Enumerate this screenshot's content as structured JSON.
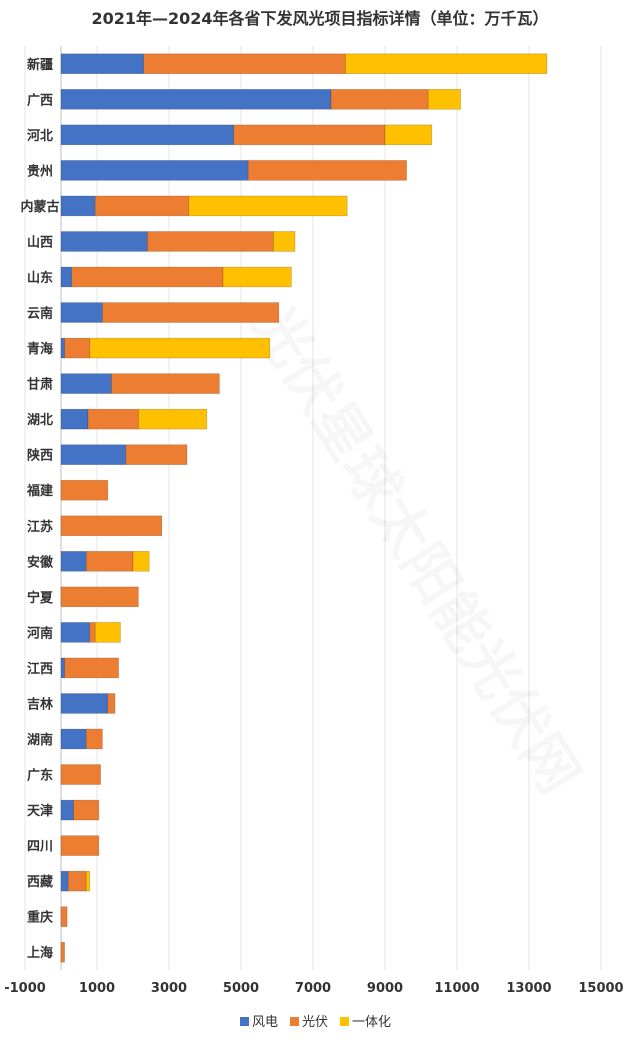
{
  "chart_data": {
    "type": "bar",
    "orientation": "horizontal",
    "stacked": true,
    "title": "2021年—2024年各省下发风光项目指标详情（单位：万千瓦）",
    "categories": [
      "新疆",
      "广西",
      "河北",
      "贵州",
      "内蒙古",
      "山西",
      "山东",
      "云南",
      "青海",
      "甘肃",
      "湖北",
      "陕西",
      "福建",
      "江苏",
      "安徽",
      "宁夏",
      "河南",
      "江西",
      "吉林",
      "湖南",
      "广东",
      "天津",
      "四川",
      "西藏",
      "重庆",
      "上海"
    ],
    "series": [
      {
        "name": "风电",
        "color": "#4472c4",
        "values": [
          2300,
          7500,
          4800,
          5200,
          950,
          2400,
          300,
          1150,
          100,
          1400,
          750,
          1800,
          0,
          0,
          700,
          0,
          800,
          100,
          1300,
          700,
          0,
          350,
          0,
          200,
          0,
          0
        ]
      },
      {
        "name": "光伏",
        "color": "#ed7d31",
        "values": [
          5600,
          2700,
          4200,
          4400,
          2600,
          3500,
          4200,
          4900,
          700,
          3000,
          1400,
          1700,
          1300,
          2800,
          1300,
          2150,
          150,
          1500,
          200,
          450,
          1100,
          700,
          1050,
          500,
          170,
          100
        ]
      },
      {
        "name": "一体化",
        "color": "#ffc000",
        "values": [
          5600,
          900,
          1300,
          0,
          4400,
          600,
          1900,
          0,
          5000,
          0,
          1900,
          0,
          0,
          0,
          450,
          0,
          700,
          0,
          0,
          0,
          0,
          0,
          0,
          100,
          0,
          0
        ]
      }
    ],
    "xlim": [
      -1000,
      15000
    ],
    "xticks": [
      -1000,
      1000,
      3000,
      5000,
      7000,
      9000,
      11000,
      13000,
      15000
    ],
    "grid": true,
    "legend_position": "bottom"
  },
  "watermark_text": "光伏星球太阳能光伏网"
}
